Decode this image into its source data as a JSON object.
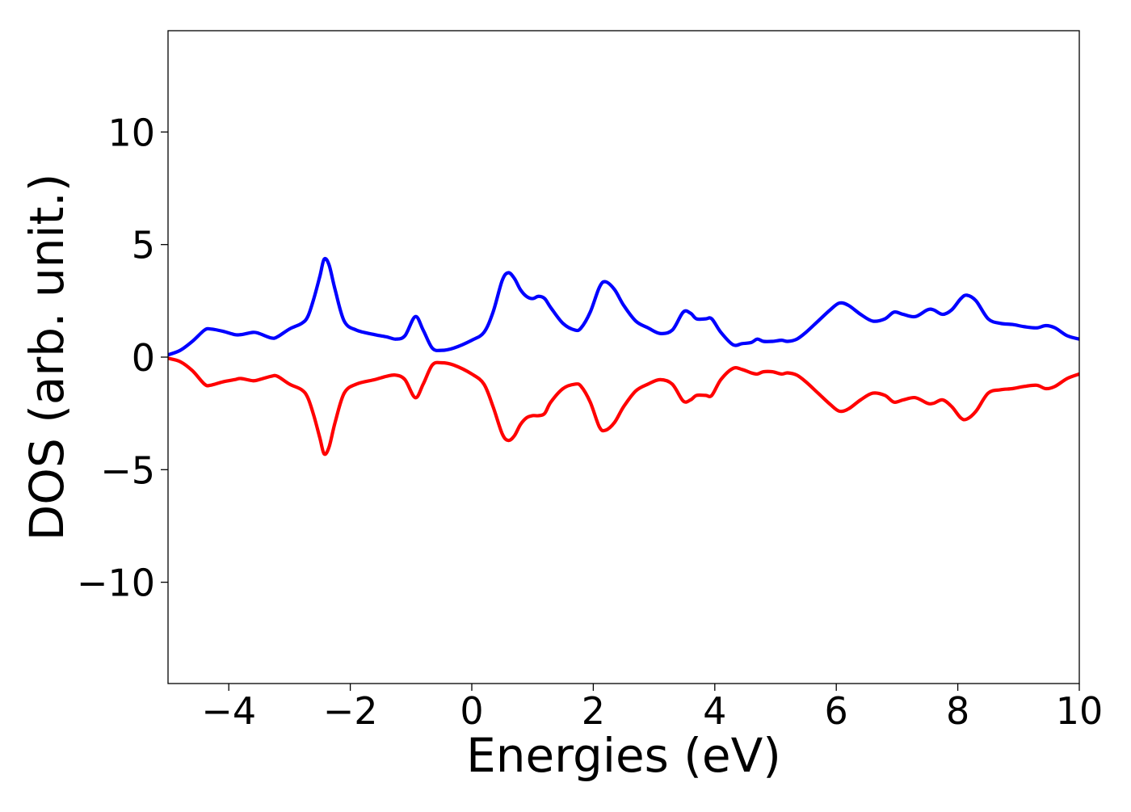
{
  "chart_data": {
    "type": "line",
    "title": "",
    "xlabel": "Energies (eV)",
    "ylabel": "DOS (arb. unit.)",
    "xlim": [
      -5,
      10
    ],
    "ylim": [
      -14.5,
      14.5
    ],
    "xticks": [
      -4,
      -2,
      0,
      2,
      4,
      6,
      8,
      10
    ],
    "xtick_labels": [
      "−4",
      "−2",
      "0",
      "2",
      "4",
      "6",
      "8",
      "10"
    ],
    "yticks": [
      -10,
      -5,
      0,
      5,
      10
    ],
    "ytick_labels": [
      "−10",
      "−5",
      "0",
      "5",
      "10"
    ],
    "grid": false,
    "legend": "none",
    "series": [
      {
        "color": "#0000ff",
        "x": [
          -5.0,
          -4.8,
          -4.6,
          -4.4,
          -4.3,
          -4.1,
          -3.9,
          -3.8,
          -3.6,
          -3.5,
          -3.3,
          -3.2,
          -3.0,
          -2.8,
          -2.7,
          -2.6,
          -2.5,
          -2.43,
          -2.35,
          -2.25,
          -2.1,
          -1.9,
          -1.6,
          -1.4,
          -1.25,
          -1.1,
          -0.93,
          -0.8,
          -0.65,
          -0.5,
          -0.3,
          0.0,
          0.2,
          0.35,
          0.5,
          0.6,
          0.7,
          0.8,
          0.9,
          1.0,
          1.1,
          1.2,
          1.3,
          1.5,
          1.7,
          1.8,
          1.95,
          2.1,
          2.2,
          2.35,
          2.5,
          2.7,
          2.9,
          3.1,
          3.3,
          3.48,
          3.6,
          3.7,
          3.85,
          3.95,
          4.1,
          4.3,
          4.45,
          4.6,
          4.7,
          4.8,
          4.95,
          5.1,
          5.2,
          5.35,
          5.5,
          5.7,
          5.9,
          6.05,
          6.2,
          6.4,
          6.6,
          6.8,
          6.95,
          7.1,
          7.3,
          7.5,
          7.6,
          7.75,
          7.9,
          8.05,
          8.15,
          8.3,
          8.5,
          8.7,
          8.9,
          9.1,
          9.3,
          9.45,
          9.6,
          9.8,
          10.0
        ],
        "values": [
          0.1,
          0.3,
          0.7,
          1.2,
          1.25,
          1.15,
          1.0,
          1.0,
          1.1,
          1.05,
          0.85,
          0.9,
          1.25,
          1.5,
          1.8,
          2.6,
          3.6,
          4.35,
          4.1,
          3.0,
          1.6,
          1.2,
          1.0,
          0.9,
          0.8,
          0.95,
          1.8,
          1.2,
          0.4,
          0.3,
          0.4,
          0.75,
          1.1,
          2.0,
          3.4,
          3.75,
          3.5,
          3.0,
          2.7,
          2.6,
          2.7,
          2.6,
          2.2,
          1.5,
          1.2,
          1.3,
          2.0,
          3.1,
          3.35,
          3.0,
          2.3,
          1.6,
          1.3,
          1.05,
          1.2,
          2.0,
          1.95,
          1.7,
          1.7,
          1.7,
          1.1,
          0.55,
          0.6,
          0.65,
          0.8,
          0.7,
          0.7,
          0.75,
          0.7,
          0.8,
          1.1,
          1.6,
          2.1,
          2.4,
          2.3,
          1.9,
          1.6,
          1.7,
          2.0,
          1.9,
          1.8,
          2.1,
          2.1,
          1.9,
          2.1,
          2.6,
          2.75,
          2.5,
          1.7,
          1.5,
          1.45,
          1.35,
          1.3,
          1.4,
          1.3,
          0.95,
          0.8
        ]
      },
      {
        "color": "#ff0000",
        "x": [
          -5.0,
          -4.8,
          -4.6,
          -4.4,
          -4.3,
          -4.1,
          -3.9,
          -3.8,
          -3.6,
          -3.5,
          -3.3,
          -3.2,
          -3.0,
          -2.8,
          -2.7,
          -2.6,
          -2.5,
          -2.43,
          -2.35,
          -2.25,
          -2.1,
          -1.9,
          -1.6,
          -1.4,
          -1.25,
          -1.1,
          -0.93,
          -0.8,
          -0.65,
          -0.5,
          -0.3,
          0.0,
          0.2,
          0.35,
          0.5,
          0.6,
          0.7,
          0.8,
          0.9,
          1.0,
          1.1,
          1.2,
          1.3,
          1.5,
          1.7,
          1.8,
          1.95,
          2.1,
          2.2,
          2.35,
          2.5,
          2.7,
          2.9,
          3.1,
          3.3,
          3.48,
          3.6,
          3.7,
          3.85,
          3.95,
          4.1,
          4.3,
          4.45,
          4.6,
          4.7,
          4.8,
          4.95,
          5.1,
          5.2,
          5.35,
          5.5,
          5.7,
          5.9,
          6.05,
          6.2,
          6.4,
          6.6,
          6.8,
          6.95,
          7.1,
          7.3,
          7.5,
          7.6,
          7.75,
          7.9,
          8.05,
          8.15,
          8.3,
          8.5,
          8.7,
          8.9,
          9.1,
          9.3,
          9.45,
          9.6,
          9.8,
          10.0
        ],
        "values": [
          -0.05,
          -0.2,
          -0.6,
          -1.2,
          -1.25,
          -1.1,
          -1.0,
          -0.95,
          -1.05,
          -1.0,
          -0.85,
          -0.85,
          -1.2,
          -1.45,
          -1.8,
          -2.6,
          -3.6,
          -4.3,
          -4.0,
          -2.9,
          -1.6,
          -1.2,
          -1.0,
          -0.85,
          -0.8,
          -1.0,
          -1.8,
          -1.2,
          -0.35,
          -0.25,
          -0.35,
          -0.75,
          -1.2,
          -2.2,
          -3.4,
          -3.7,
          -3.5,
          -3.0,
          -2.7,
          -2.6,
          -2.6,
          -2.5,
          -2.0,
          -1.4,
          -1.2,
          -1.3,
          -2.0,
          -3.1,
          -3.25,
          -2.9,
          -2.2,
          -1.5,
          -1.2,
          -1.0,
          -1.2,
          -1.95,
          -1.9,
          -1.7,
          -1.7,
          -1.7,
          -1.0,
          -0.5,
          -0.55,
          -0.7,
          -0.75,
          -0.65,
          -0.65,
          -0.75,
          -0.7,
          -0.8,
          -1.1,
          -1.6,
          -2.1,
          -2.4,
          -2.3,
          -1.9,
          -1.6,
          -1.7,
          -2.0,
          -1.9,
          -1.8,
          -2.05,
          -2.05,
          -1.9,
          -2.2,
          -2.7,
          -2.75,
          -2.4,
          -1.6,
          -1.45,
          -1.4,
          -1.3,
          -1.25,
          -1.4,
          -1.3,
          -0.95,
          -0.75
        ]
      }
    ]
  }
}
